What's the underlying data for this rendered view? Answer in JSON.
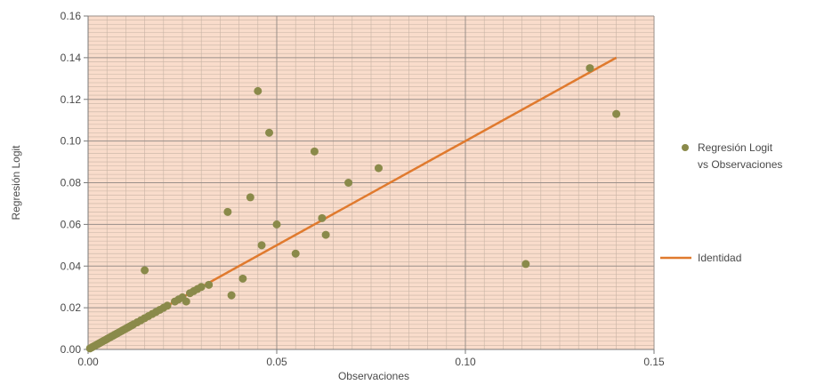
{
  "chart_data": {
    "type": "scatter",
    "xlabel": "Observaciones",
    "ylabel": "Regresión Logit",
    "xlim": [
      0,
      0.15
    ],
    "ylim": [
      0,
      0.16
    ],
    "x_ticks": [
      "0.00",
      "0.05",
      "0.10",
      "0.15"
    ],
    "y_ticks": [
      "0.00",
      "0.02",
      "0.04",
      "0.06",
      "0.08",
      "0.10",
      "0.12",
      "0.14",
      "0.16"
    ],
    "grid": true,
    "legend_position": "right",
    "colors": {
      "plot_background": "#f9dccb",
      "minor_grid": "#c8b3a4",
      "major_grid": "#9a8f8a",
      "scatter": "#8a8a4a",
      "identity": "#e07a2e"
    },
    "series": [
      {
        "name": "Regresión Logit vs Observaciones",
        "type": "scatter",
        "points": [
          [
            0.0005,
            0.0005
          ],
          [
            0.001,
            0.001
          ],
          [
            0.0015,
            0.0015
          ],
          [
            0.002,
            0.002
          ],
          [
            0.0025,
            0.0025
          ],
          [
            0.003,
            0.003
          ],
          [
            0.0035,
            0.0035
          ],
          [
            0.004,
            0.004
          ],
          [
            0.0045,
            0.0045
          ],
          [
            0.005,
            0.005
          ],
          [
            0.0055,
            0.0055
          ],
          [
            0.006,
            0.006
          ],
          [
            0.0065,
            0.0065
          ],
          [
            0.007,
            0.007
          ],
          [
            0.0075,
            0.0075
          ],
          [
            0.008,
            0.008
          ],
          [
            0.0085,
            0.0085
          ],
          [
            0.009,
            0.009
          ],
          [
            0.0095,
            0.0095
          ],
          [
            0.01,
            0.01
          ],
          [
            0.0105,
            0.0105
          ],
          [
            0.011,
            0.011
          ],
          [
            0.0115,
            0.0115
          ],
          [
            0.012,
            0.012
          ],
          [
            0.013,
            0.013
          ],
          [
            0.014,
            0.014
          ],
          [
            0.015,
            0.015
          ],
          [
            0.016,
            0.016
          ],
          [
            0.017,
            0.017
          ],
          [
            0.018,
            0.018
          ],
          [
            0.019,
            0.019
          ],
          [
            0.02,
            0.02
          ],
          [
            0.021,
            0.021
          ],
          [
            0.023,
            0.023
          ],
          [
            0.024,
            0.024
          ],
          [
            0.025,
            0.025
          ],
          [
            0.026,
            0.023
          ],
          [
            0.027,
            0.027
          ],
          [
            0.028,
            0.028
          ],
          [
            0.029,
            0.029
          ],
          [
            0.03,
            0.03
          ],
          [
            0.032,
            0.031
          ],
          [
            0.015,
            0.038
          ],
          [
            0.037,
            0.066
          ],
          [
            0.038,
            0.026
          ],
          [
            0.041,
            0.034
          ],
          [
            0.043,
            0.073
          ],
          [
            0.045,
            0.124
          ],
          [
            0.046,
            0.05
          ],
          [
            0.048,
            0.104
          ],
          [
            0.05,
            0.06
          ],
          [
            0.055,
            0.046
          ],
          [
            0.06,
            0.095
          ],
          [
            0.062,
            0.063
          ],
          [
            0.063,
            0.055
          ],
          [
            0.069,
            0.08
          ],
          [
            0.077,
            0.087
          ],
          [
            0.116,
            0.041
          ],
          [
            0.133,
            0.135
          ],
          [
            0.14,
            0.113
          ]
        ]
      },
      {
        "name": "Identidad",
        "type": "line",
        "points": [
          [
            0.0,
            0.0
          ],
          [
            0.14,
            0.14
          ]
        ]
      }
    ],
    "legend": [
      {
        "lines": [
          "Regresión Logit",
          "vs Observaciones"
        ],
        "marker": "circle"
      },
      {
        "lines": [
          "Identidad"
        ],
        "marker": "line"
      }
    ]
  }
}
